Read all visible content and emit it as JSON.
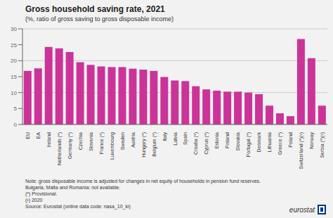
{
  "chart_data": {
    "type": "bar",
    "title": "Gross household saving rate, 2021",
    "subtitle": "(%, ratio of gross saving to gross disposable income)",
    "categories": [
      "EU",
      "EA",
      "Ireland",
      "Netherlands (*)",
      "Germany (*)",
      "Czechia",
      "Slovenia",
      "France (*)",
      "Luxembourg",
      "Sweden",
      "Austria",
      "Hungary (*)",
      "Belgium (*)",
      "Italy",
      "Latvia",
      "Spain",
      "Croatia (*)",
      "Cyprus (*)",
      "Estonia",
      "Finland",
      "Slovakia",
      "Portugal (*)",
      "Denmark",
      "Lithuania",
      "Greece (*)",
      "Poland",
      "Switzerland (*)(²)",
      "Norway",
      "Serbia (*)(²)"
    ],
    "values": [
      16.8,
      17.6,
      24.3,
      23.9,
      22.7,
      19.5,
      18.7,
      18.2,
      18.0,
      18.0,
      17.5,
      17.2,
      16.8,
      14.9,
      13.8,
      13.6,
      12.0,
      11.0,
      10.6,
      10.3,
      10.3,
      10.0,
      9.5,
      5.9,
      3.5,
      2.6,
      26.8,
      20.8,
      5.9
    ],
    "color": "#cc3399",
    "ylim": [
      0,
      30
    ],
    "yticks": [
      0,
      5,
      10,
      15,
      20,
      25,
      30
    ],
    "grid": true,
    "annotations": [
      "Note: gross disposable income is adjusted for changes in net equity of households in pension fund reserves.",
      "Bulgaria, Malta and Romania: not available.",
      "(*) Provisional.",
      "(²) 2020",
      "Source: Eurostat (online data code: nasa_10_ki)",
      "eurostat"
    ]
  }
}
